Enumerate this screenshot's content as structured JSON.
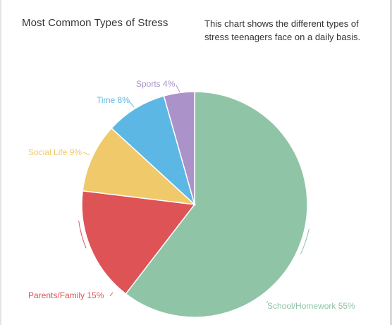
{
  "header": {
    "title": "Most Common Types of Stress",
    "description": "This chart shows the different types of stress teenagers face on a daily basis."
  },
  "chart_data": {
    "type": "pie",
    "title": "Most Common Types of Stress",
    "slices": [
      {
        "label": "School/Homework",
        "value": 55,
        "display": "School/Homework 55%",
        "color": "#8fc4a6"
      },
      {
        "label": "Parents/Family",
        "value": 15,
        "display": "Parents/Family 15%",
        "color": "#de5356"
      },
      {
        "label": "Social Life",
        "value": 9,
        "display": "Social Life 9%",
        "color": "#f0c96a"
      },
      {
        "label": "Time",
        "value": 8,
        "display": "Time 8%",
        "color": "#5db7e5"
      },
      {
        "label": "Sports",
        "value": 4,
        "display": "Sports 4%",
        "color": "#ab92c9"
      }
    ],
    "start": "top",
    "direction": "clockwise"
  }
}
